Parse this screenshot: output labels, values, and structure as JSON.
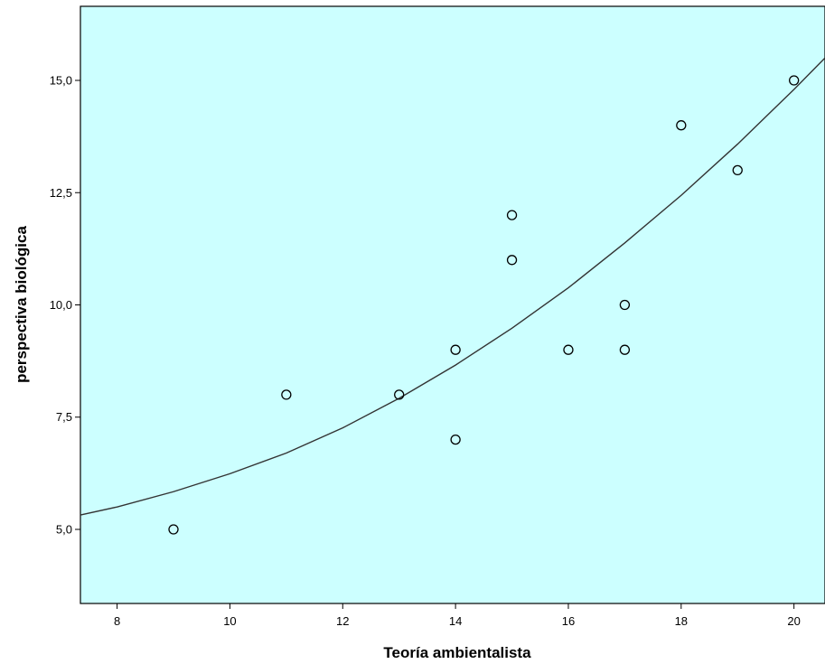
{
  "chart_data": {
    "type": "scatter",
    "title": "",
    "xlabel": "Teoría ambientalista",
    "ylabel": "perspectiva biológica",
    "xlim": [
      7.35,
      20.55
    ],
    "ylim": [
      3.35,
      16.65
    ],
    "x_ticks": [
      8,
      10,
      12,
      14,
      16,
      18,
      20
    ],
    "x_tick_labels": [
      "8",
      "10",
      "12",
      "14",
      "16",
      "18",
      "20"
    ],
    "y_ticks": [
      5.0,
      7.5,
      10.0,
      12.5,
      15.0
    ],
    "y_tick_labels": [
      "5,0",
      "7,5",
      "10,0",
      "12,5",
      "15,0"
    ],
    "grid": false,
    "legend": "none",
    "points": [
      {
        "x": 9,
        "y": 5
      },
      {
        "x": 11,
        "y": 8
      },
      {
        "x": 13,
        "y": 8
      },
      {
        "x": 14,
        "y": 9
      },
      {
        "x": 14,
        "y": 7
      },
      {
        "x": 15,
        "y": 12
      },
      {
        "x": 15,
        "y": 11
      },
      {
        "x": 16,
        "y": 9
      },
      {
        "x": 17,
        "y": 10
      },
      {
        "x": 17,
        "y": 9
      },
      {
        "x": 18,
        "y": 14
      },
      {
        "x": 19,
        "y": 13
      },
      {
        "x": 20,
        "y": 15
      }
    ],
    "fit_line": {
      "type": "quadratic",
      "x": [
        7.35,
        8,
        9,
        10,
        11,
        12,
        13,
        14,
        15,
        16,
        17,
        18,
        19,
        20,
        20.55
      ],
      "y": [
        5.32,
        5.5,
        5.84,
        6.24,
        6.7,
        7.26,
        7.92,
        8.66,
        9.48,
        10.38,
        11.38,
        12.44,
        13.58,
        14.8,
        15.5
      ]
    },
    "colors": {
      "plot_background": "#ccffff",
      "marker_stroke": "#000000",
      "fit_line": "#333333",
      "axis": "#000000"
    }
  }
}
